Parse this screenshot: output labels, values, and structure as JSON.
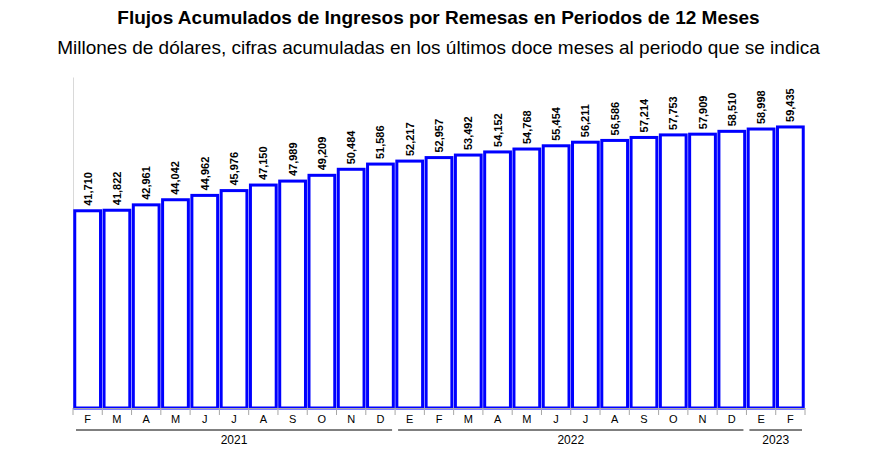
{
  "chart_data": {
    "type": "bar",
    "title": "Flujos Acumulados de Ingresos por Remesas en Periodos de 12 Meses",
    "subtitle": "Millones de dólares, cifras acumuladas en los últimos doce meses al periodo que se indica",
    "categories": [
      "F",
      "M",
      "A",
      "M",
      "J",
      "J",
      "A",
      "S",
      "O",
      "N",
      "D",
      "E",
      "F",
      "M",
      "A",
      "M",
      "J",
      "J",
      "A",
      "S",
      "O",
      "N",
      "D",
      "E",
      "F"
    ],
    "category_groups": [
      {
        "label": "2021",
        "count": 11
      },
      {
        "label": "2022",
        "count": 12
      },
      {
        "label": "2023",
        "count": 2
      }
    ],
    "values": [
      41710,
      41822,
      42961,
      44042,
      44962,
      45976,
      47150,
      47989,
      49209,
      50484,
      51586,
      52217,
      52957,
      53492,
      54152,
      54768,
      55454,
      56211,
      56586,
      57214,
      57753,
      57909,
      58510,
      58998,
      59435
    ],
    "value_labels": [
      "41,710",
      "41,822",
      "42,961",
      "44,042",
      "44,962",
      "45,976",
      "47,150",
      "47,989",
      "49,209",
      "50,484",
      "51,586",
      "52,217",
      "52,957",
      "53,492",
      "54,152",
      "54,768",
      "55,454",
      "56,211",
      "56,586",
      "57,214",
      "57,753",
      "57,909",
      "58,510",
      "58,998",
      "59,435"
    ],
    "color": "#0000ff",
    "ylim": [
      0,
      70000
    ],
    "data_labels": true,
    "tick_labels": "x"
  }
}
